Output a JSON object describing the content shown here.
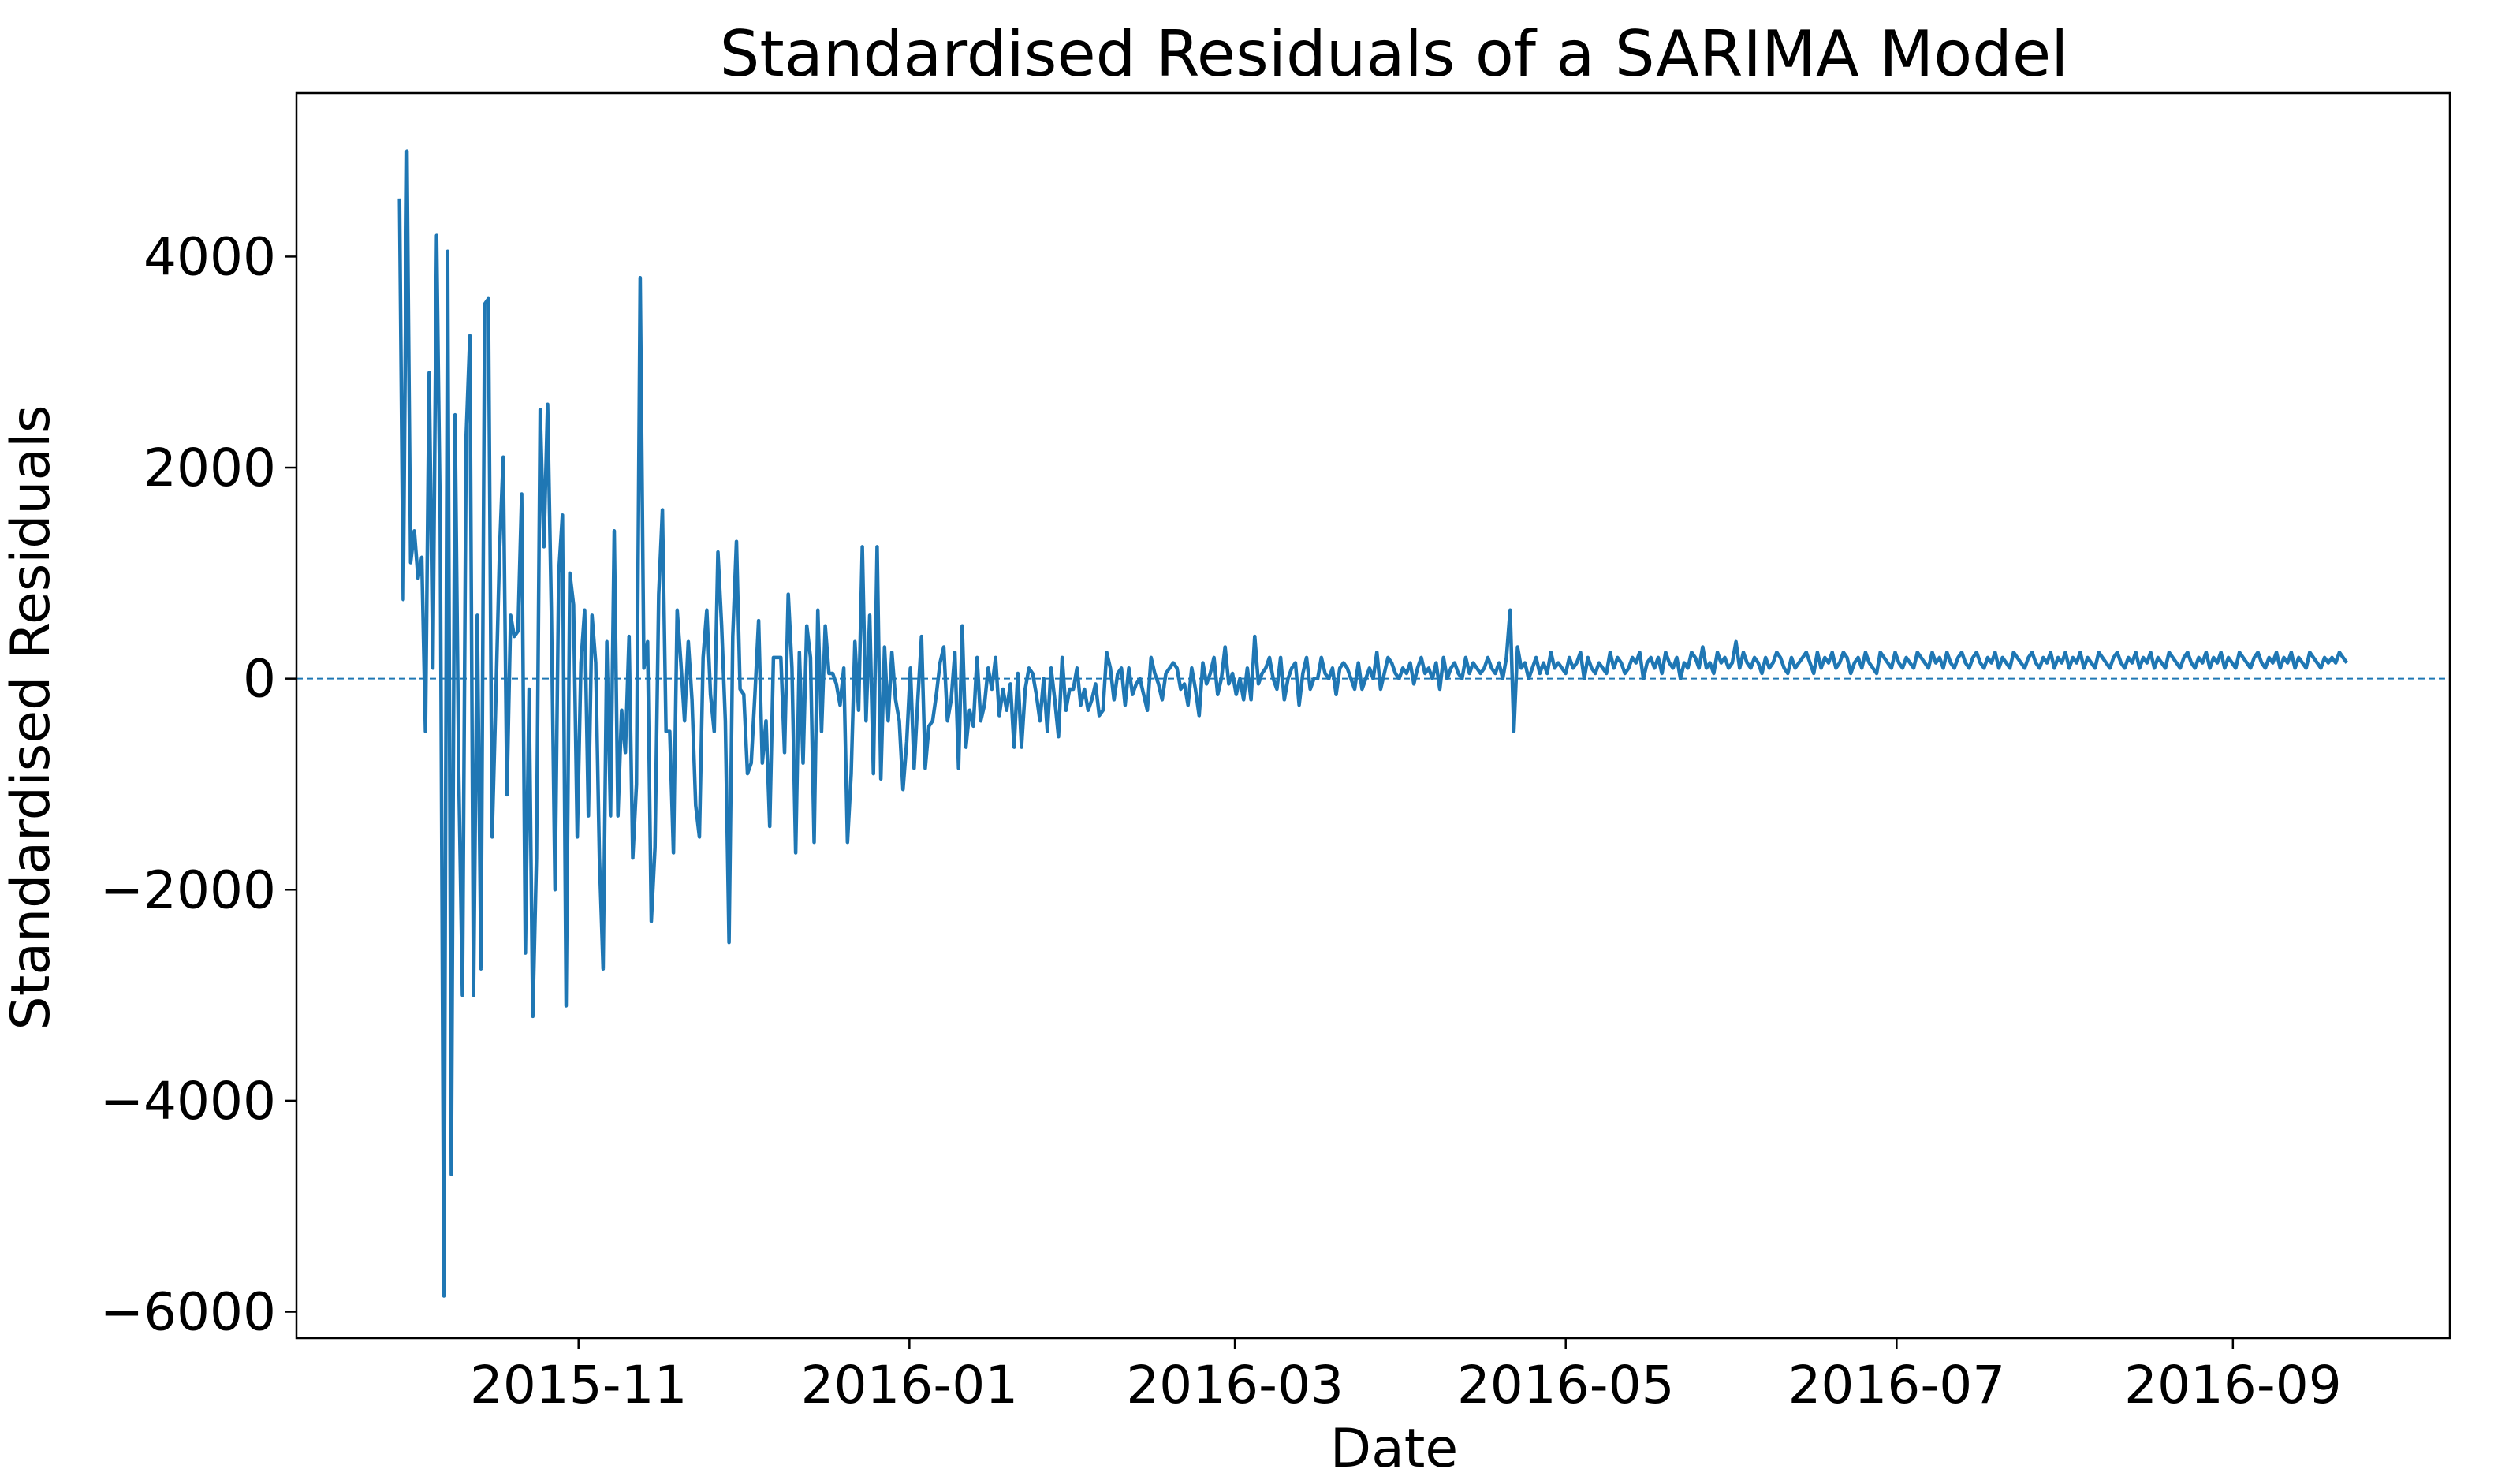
{
  "chart_data": {
    "type": "line",
    "title": "Standardised Residuals of a SARIMA Model",
    "xlabel": "Date",
    "ylabel": "Standardised Residuals",
    "x_start": "2015-09-29",
    "x_end": "2016-09-22",
    "xlim": [
      "2015-09-10",
      "2016-10-11"
    ],
    "ylim": [
      -6250,
      5550
    ],
    "grid": false,
    "legend": "none",
    "line_color": "#1f77b4",
    "zero_line_color": "#1f77b4",
    "x_ticks": [
      {
        "date": "2015-11-01",
        "label": "2015-11"
      },
      {
        "date": "2016-01-01",
        "label": "2016-01"
      },
      {
        "date": "2016-03-01",
        "label": "2016-03"
      },
      {
        "date": "2016-05-01",
        "label": "2016-05"
      },
      {
        "date": "2016-07-01",
        "label": "2016-07"
      },
      {
        "date": "2016-09-01",
        "label": "2016-09"
      }
    ],
    "y_ticks": [
      {
        "value": 4000,
        "label": "4000"
      },
      {
        "value": 2000,
        "label": "2000"
      },
      {
        "value": 0,
        "label": "0"
      },
      {
        "value": -2000,
        "label": "−2000"
      },
      {
        "value": -4000,
        "label": "−4000"
      },
      {
        "value": -6000,
        "label": "−6000"
      }
    ],
    "series": [
      {
        "values": [
          4550,
          750,
          5000,
          1100,
          1400,
          950,
          1150,
          -500,
          2900,
          100,
          4200,
          1500,
          -5850,
          4050,
          -4700,
          2500,
          -900,
          -3000,
          2300,
          3250,
          -3000,
          600,
          -2750,
          3550,
          3600,
          -1500,
          -200,
          1200,
          2100,
          -1100,
          600,
          400,
          450,
          1750,
          -2600,
          -100,
          -3200,
          -1700,
          2550,
          1250,
          2600,
          650,
          -2000,
          1000,
          1550,
          -3100,
          1000,
          700,
          -1500,
          150,
          650,
          -1300,
          600,
          150,
          -1700,
          -2750,
          350,
          -1300,
          1400,
          -1300,
          -300,
          -700,
          400,
          -1700,
          -1000,
          3800,
          100,
          350,
          -2300,
          -1600,
          800,
          1600,
          -500,
          -500,
          -1650,
          650,
          150,
          -400,
          350,
          -200,
          -1200,
          -1500,
          200,
          650,
          -150,
          -500,
          1200,
          500,
          -400,
          -2500,
          400,
          1300,
          -100,
          -150,
          -900,
          -800,
          -150,
          550,
          -800,
          -400,
          -1400,
          200,
          200,
          200,
          -700,
          800,
          100,
          -1650,
          250,
          -800,
          500,
          200,
          -1550,
          650,
          -500,
          500,
          50,
          50,
          -50,
          -250,
          100,
          -1550,
          -900,
          350,
          -300,
          1250,
          -400,
          600,
          -900,
          1250,
          -950,
          300,
          -400,
          250,
          -200,
          -400,
          -1050,
          -600,
          100,
          -850,
          -200,
          400,
          -850,
          -450,
          -400,
          -150,
          150,
          300,
          -400,
          -200,
          250,
          -850,
          500,
          -650,
          -300,
          -450,
          200,
          -400,
          -250,
          100,
          -100,
          200,
          -350,
          -100,
          -300,
          -50,
          -650,
          50,
          -650,
          -100,
          100,
          50,
          -150,
          -400,
          0,
          -500,
          100,
          -200,
          -550,
          200,
          -300,
          -100,
          -100,
          100,
          -250,
          -100,
          -300,
          -200,
          -50,
          -350,
          -300,
          250,
          100,
          -200,
          50,
          100,
          -250,
          100,
          -150,
          -50,
          0,
          -150,
          -300,
          200,
          50,
          -50,
          -200,
          50,
          100,
          150,
          100,
          -100,
          -50,
          -250,
          100,
          -100,
          -350,
          150,
          -50,
          50,
          200,
          -150,
          0,
          300,
          -50,
          50,
          -150,
          0,
          -200,
          100,
          -200,
          400,
          -50,
          50,
          100,
          200,
          0,
          -100,
          200,
          -200,
          0,
          100,
          150,
          -250,
          50,
          200,
          -100,
          0,
          0,
          200,
          50,
          0,
          100,
          -150,
          100,
          150,
          100,
          0,
          -100,
          150,
          -100,
          0,
          100,
          0,
          250,
          -100,
          50,
          200,
          150,
          50,
          0,
          100,
          50,
          150,
          -50,
          100,
          200,
          50,
          100,
          0,
          150,
          -100,
          200,
          0,
          100,
          150,
          50,
          0,
          200,
          50,
          150,
          100,
          50,
          100,
          200,
          100,
          50,
          150,
          0,
          200,
          650,
          -500,
          300,
          100,
          150,
          0,
          100,
          200,
          50,
          150,
          50,
          250,
          100,
          150,
          100,
          50,
          200,
          100,
          150,
          250,
          0,
          200,
          100,
          50,
          150,
          100,
          50,
          250,
          100,
          200,
          150,
          50,
          100,
          200,
          150,
          250,
          0,
          150,
          200,
          100,
          200,
          50,
          250,
          150,
          100,
          200,
          0,
          150,
          100,
          250,
          200,
          100,
          300,
          100,
          150,
          50,
          250,
          150,
          200,
          100,
          150,
          350,
          100,
          250,
          150,
          100,
          200,
          150,
          50,
          200,
          100,
          150,
          250,
          200,
          100,
          50,
          200,
          100,
          150,
          200,
          250,
          150,
          50,
          250,
          100,
          200,
          150,
          250,
          100,
          150,
          250,
          200,
          50,
          150,
          200,
          100,
          250,
          150,
          100,
          50,
          250,
          200,
          150,
          100,
          250,
          150,
          100,
          200,
          150,
          100,
          250,
          200,
          150,
          100,
          250,
          150,
          200,
          100,
          250,
          150,
          100,
          200,
          250,
          150,
          100,
          200,
          250,
          150,
          100,
          200,
          150,
          250,
          100,
          200,
          150,
          100,
          250,
          200,
          150,
          100,
          200,
          250,
          150,
          100,
          200,
          150,
          250,
          100,
          200,
          150,
          250,
          100,
          200,
          150,
          250,
          100,
          200,
          150,
          100,
          250,
          200,
          150,
          100,
          200,
          250,
          150,
          100,
          200,
          150,
          250,
          100,
          200,
          150,
          250,
          100,
          200,
          150,
          100,
          250,
          200,
          150,
          100,
          200,
          250,
          150,
          100,
          200,
          150,
          250,
          100,
          200,
          150,
          250,
          100,
          200,
          150,
          100,
          250,
          200,
          150,
          100,
          200,
          250,
          150,
          100,
          200,
          150,
          250,
          100,
          200,
          150,
          250,
          100,
          200,
          150,
          100,
          250,
          200,
          150,
          100,
          200,
          150,
          200,
          150,
          250,
          200,
          150
        ]
      }
    ]
  }
}
